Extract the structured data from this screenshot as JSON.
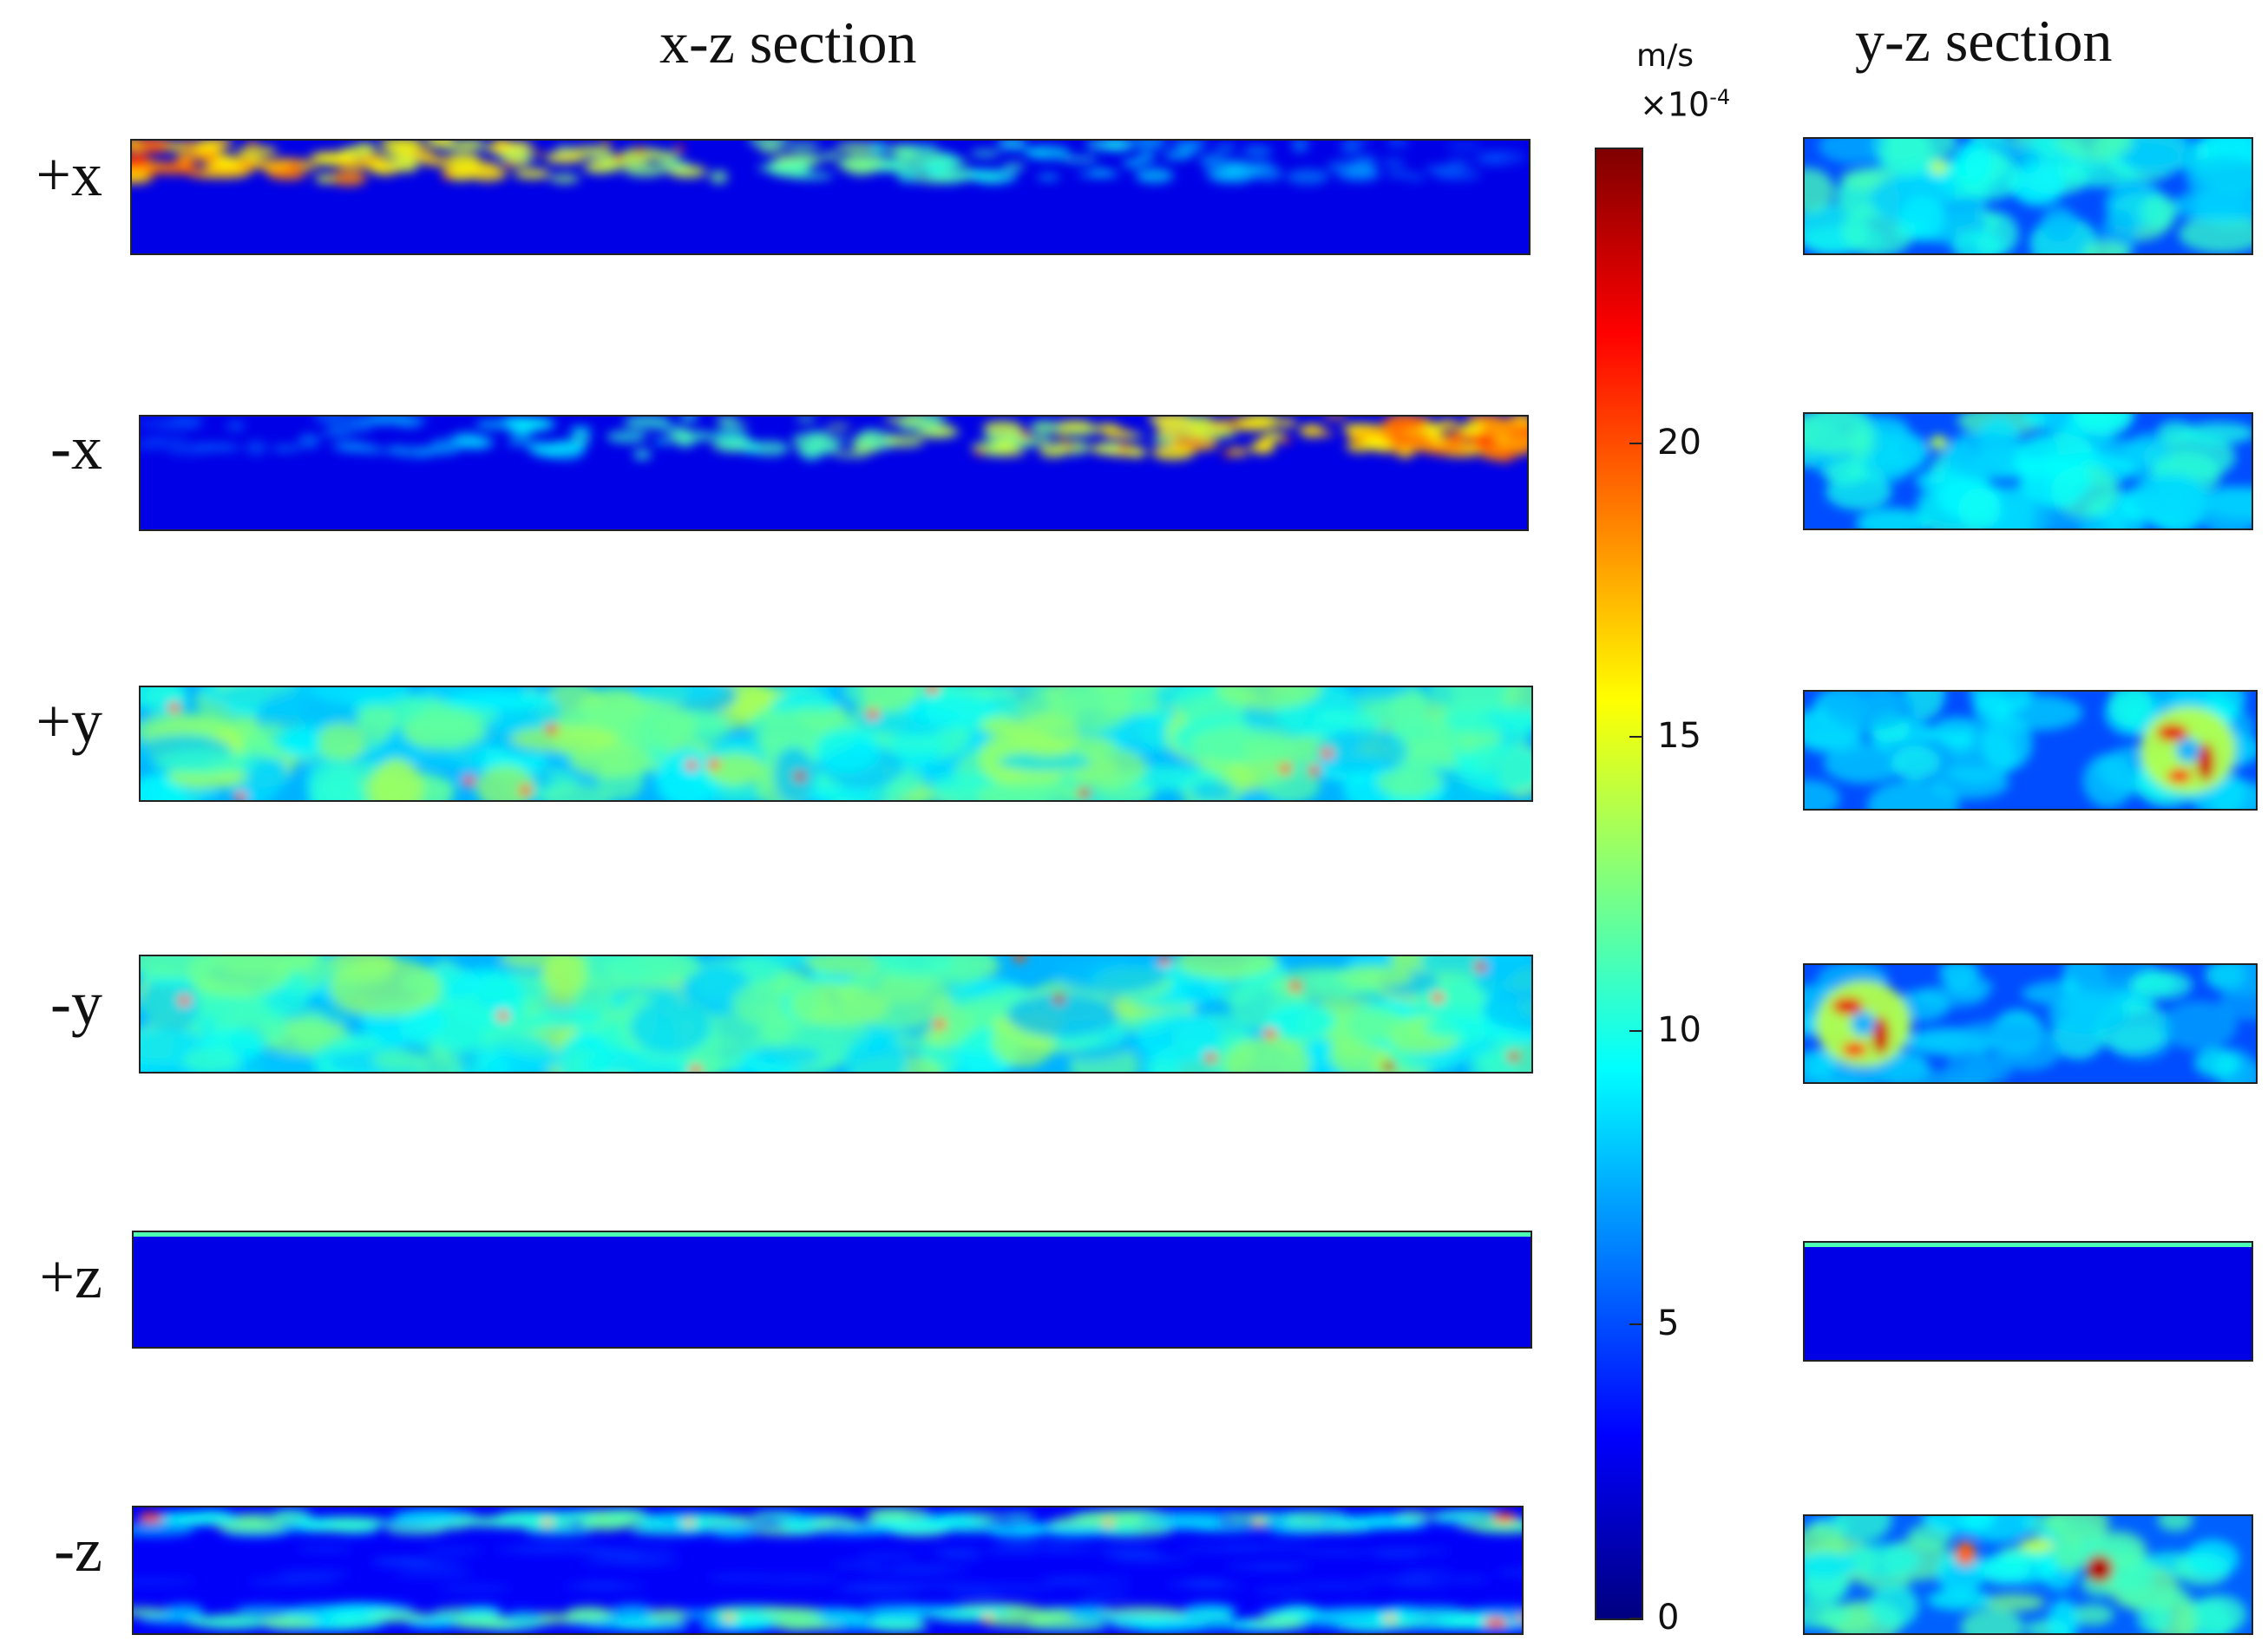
{
  "titles": {
    "xz": "x-z section",
    "yz": "y-z section"
  },
  "rows": [
    {
      "label": "+x",
      "pattern": "top-band-left"
    },
    {
      "label": "-x",
      "pattern": "top-band-right"
    },
    {
      "label": "+y",
      "pattern": "full-turbulent"
    },
    {
      "label": "-y",
      "pattern": "full-turbulent"
    },
    {
      "label": "+z",
      "pattern": "thin-top-line"
    },
    {
      "label": "-z",
      "pattern": "edge-bands"
    }
  ],
  "colorbar": {
    "unit": "m/s",
    "multiplier_base": "×10",
    "multiplier_exp": "-4",
    "ticks": [
      "0",
      "5",
      "10",
      "15",
      "20"
    ],
    "min": 0,
    "max": 25,
    "colormap": "jet"
  },
  "colors": {
    "background": "#0f1a8a",
    "low": "#0000ff",
    "mid": "#00ffff",
    "high": "#ff0000"
  }
}
